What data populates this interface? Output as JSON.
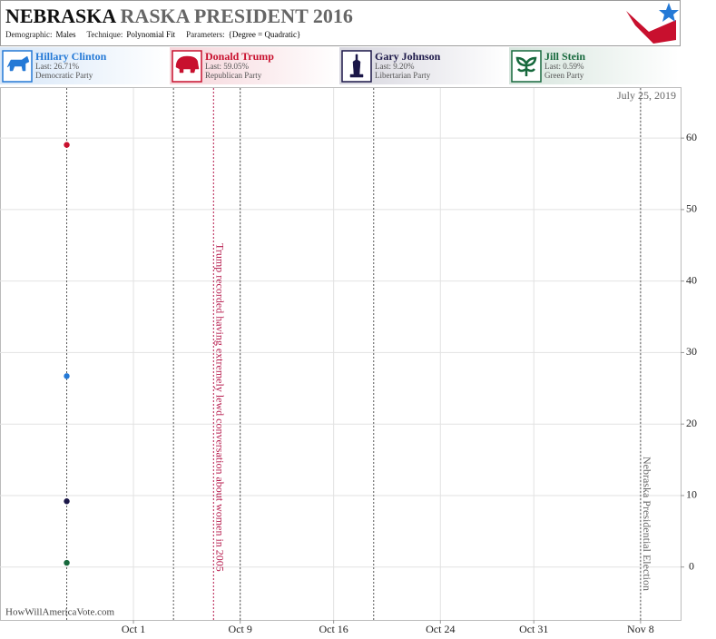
{
  "chart_data": {
    "type": "scatter",
    "title": {
      "state": "NEBRASKA",
      "rest": "RASKA PRESIDENT 2016"
    },
    "subtitle_fields": [
      {
        "label": "Demographic:",
        "value": "Males"
      },
      {
        "label": "Technique:",
        "value": "Polynomial Fit"
      },
      {
        "label": "Parameters:",
        "value": "{Degree = Quadratic}"
      }
    ],
    "date_note": "July 25, 2019",
    "source": "HowWillAmericaVote.com",
    "x": [
      "2016-09-26"
    ],
    "series": [
      {
        "name": "Hillary Clinton",
        "party": "Democratic Party",
        "color": "#2479d6",
        "values": [
          26.71
        ],
        "value_labels": [
          "Last: 26.71%"
        ]
      },
      {
        "name": "Donald Trump",
        "party": "Republican Party",
        "color": "#c8102e",
        "values": [
          59.05
        ],
        "value_labels": [
          "Last: 59.05%"
        ]
      },
      {
        "name": "Gary Johnson",
        "party": "Libertarian Party",
        "color": "#1b1748",
        "values": [
          9.2
        ],
        "value_labels": [
          "Last: 9.20%"
        ]
      },
      {
        "name": "Jill Stein",
        "party": "Green Party",
        "color": "#17693d",
        "values": [
          0.59
        ],
        "value_labels": [
          "Last: 0.59%"
        ]
      }
    ],
    "events": [
      {
        "x": "2016-09-26",
        "color": "#555555"
      },
      {
        "x": "2016-10-04",
        "color": "#555555"
      },
      {
        "x": "2016-10-07",
        "color": "#b5174a",
        "label": "Trump recorded having extremely lewd conversation about women in 2005"
      },
      {
        "x": "2016-10-09",
        "color": "#555555"
      },
      {
        "x": "2016-10-19",
        "color": "#555555"
      },
      {
        "x": "2016-11-08",
        "color": "#555555",
        "label": "Nebraska Presidential Election"
      }
    ],
    "xlim": [
      "2016-09-21",
      "2016-11-11"
    ],
    "xticks": [
      {
        "value": "2016-10-01",
        "label": "Oct 1"
      },
      {
        "value": "2016-10-09",
        "label": "Oct 9"
      },
      {
        "value": "2016-10-16",
        "label": "Oct 16"
      },
      {
        "value": "2016-10-24",
        "label": "Oct 24"
      },
      {
        "value": "2016-10-31",
        "label": "Oct 31"
      },
      {
        "value": "2016-11-08",
        "label": "Nov 8"
      }
    ],
    "ylim": [
      -7.4,
      67
    ],
    "yticks": [
      0,
      10,
      20,
      30,
      40,
      50,
      60
    ],
    "grid": true
  }
}
